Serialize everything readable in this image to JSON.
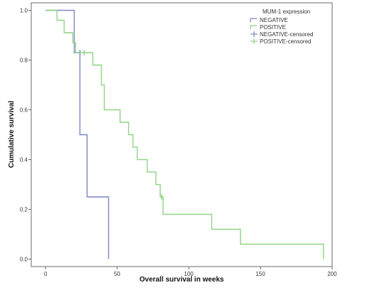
{
  "chart_data": {
    "type": "line",
    "subtype": "kaplan-meier-step",
    "xlabel": "Overall survival in weeks",
    "ylabel": "Cumulative survival",
    "xlim": [
      -10,
      200
    ],
    "ylim": [
      -0.03,
      1.03
    ],
    "x_ticks": [
      0,
      50,
      100,
      150,
      200
    ],
    "y_ticks": [
      0.0,
      0.2,
      0.4,
      0.6,
      0.8,
      1.0
    ],
    "x_tick_labels": [
      "0",
      "50",
      "100",
      "150",
      "200"
    ],
    "y_tick_labels": [
      "0.0",
      "0.2",
      "0.4",
      "0.6",
      "0.8",
      "1.0"
    ],
    "grid": false,
    "legend": {
      "title": "MUM-1 expression",
      "position": "top-right",
      "entries": [
        "NEGATIVE",
        "POSITIVE",
        "NEGATIVE-censored",
        "POSITIVE-censored"
      ]
    },
    "series": [
      {
        "name": "NEGATIVE",
        "color": "#7b86c2",
        "steps": [
          [
            0,
            1.0
          ],
          [
            20,
            1.0
          ],
          [
            20,
            0.83
          ],
          [
            24,
            0.83
          ],
          [
            24,
            0.5
          ],
          [
            29,
            0.5
          ],
          [
            29,
            0.25
          ],
          [
            44,
            0.25
          ],
          [
            44,
            0.0
          ]
        ],
        "censored": [
          [
            24,
            0.83
          ]
        ]
      },
      {
        "name": "POSITIVE",
        "color": "#8fd483",
        "steps": [
          [
            0,
            1.0
          ],
          [
            8,
            1.0
          ],
          [
            8,
            0.96
          ],
          [
            13,
            0.96
          ],
          [
            13,
            0.91
          ],
          [
            19,
            0.91
          ],
          [
            19,
            0.87
          ],
          [
            21,
            0.87
          ],
          [
            21,
            0.83
          ],
          [
            33,
            0.83
          ],
          [
            33,
            0.78
          ],
          [
            39,
            0.78
          ],
          [
            39,
            0.7
          ],
          [
            41,
            0.7
          ],
          [
            41,
            0.6
          ],
          [
            52,
            0.6
          ],
          [
            52,
            0.55
          ],
          [
            58,
            0.55
          ],
          [
            58,
            0.5
          ],
          [
            61,
            0.5
          ],
          [
            61,
            0.45
          ],
          [
            64,
            0.45
          ],
          [
            64,
            0.4
          ],
          [
            71,
            0.4
          ],
          [
            71,
            0.35
          ],
          [
            77,
            0.35
          ],
          [
            77,
            0.3
          ],
          [
            80,
            0.3
          ],
          [
            80,
            0.25
          ],
          [
            82,
            0.25
          ],
          [
            82,
            0.18
          ],
          [
            116,
            0.18
          ],
          [
            116,
            0.12
          ],
          [
            136,
            0.12
          ],
          [
            136,
            0.06
          ],
          [
            194,
            0.06
          ],
          [
            194,
            0.0
          ]
        ],
        "censored": [
          [
            27,
            0.83
          ],
          [
            81,
            0.25
          ]
        ]
      }
    ]
  }
}
